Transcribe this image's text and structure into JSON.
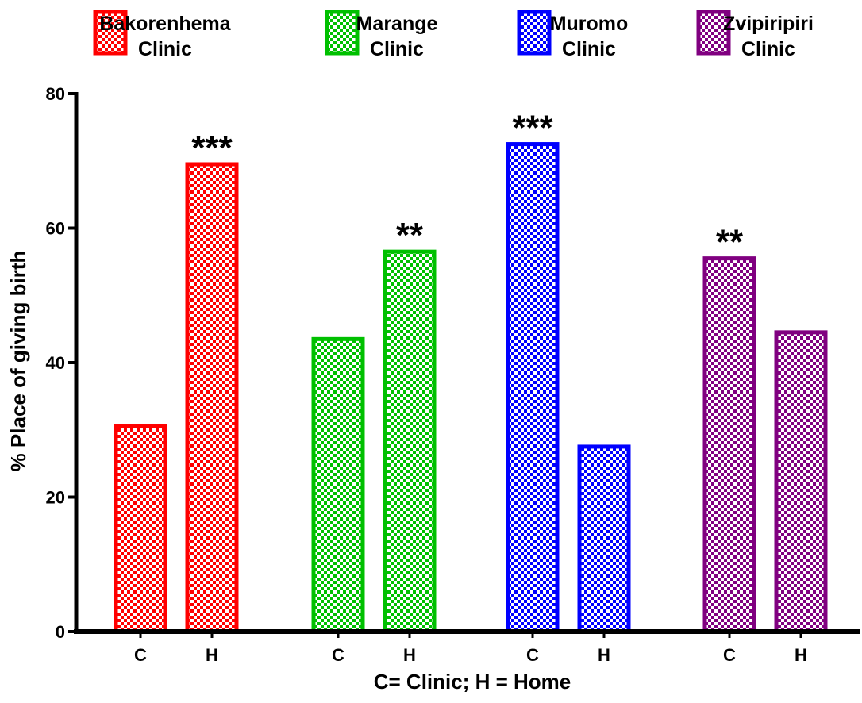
{
  "chart_data": {
    "type": "bar",
    "title": "",
    "xlabel": "C= Clinic; H = Home",
    "ylabel": "% Place of giving birth",
    "ylim": [
      0,
      80
    ],
    "yticks": [
      0,
      20,
      40,
      60,
      80
    ],
    "grid": false,
    "legend_position": "top",
    "series": [
      {
        "name": "Bakorenhema Clinic",
        "name_lines": [
          "Bakorenhema",
          "Clinic"
        ],
        "color": "#ff0000",
        "categories": [
          "C",
          "H"
        ],
        "values": [
          30.5,
          69.5
        ],
        "annotations": [
          "",
          "***"
        ]
      },
      {
        "name": "Marange Clinic",
        "name_lines": [
          "Marange",
          "Clinic"
        ],
        "color": "#00c000",
        "categories": [
          "C",
          "H"
        ],
        "values": [
          43.5,
          56.5
        ],
        "annotations": [
          "",
          "**"
        ]
      },
      {
        "name": "Muromo Clinic",
        "name_lines": [
          "Muromo",
          "Clinic"
        ],
        "color": "#0000ff",
        "categories": [
          "C",
          "H"
        ],
        "values": [
          72.5,
          27.5
        ],
        "annotations": [
          "***",
          ""
        ]
      },
      {
        "name": "Zvipiripiri Clinic",
        "name_lines": [
          "Zvipiripiri",
          "Clinic"
        ],
        "color": "#800080",
        "categories": [
          "C",
          "H"
        ],
        "values": [
          55.5,
          44.5
        ],
        "annotations": [
          "**",
          ""
        ]
      }
    ]
  }
}
